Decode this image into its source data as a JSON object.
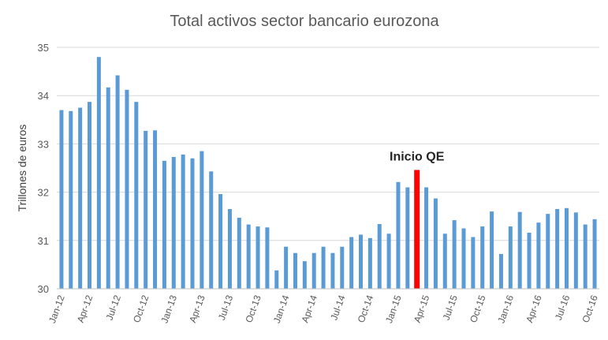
{
  "chart_data": {
    "type": "bar",
    "title": "Total activos sector bancario eurozona",
    "xlabel": "",
    "ylabel": "Trillones de euros",
    "ylim": [
      30,
      35
    ],
    "yticks": [
      30,
      31,
      32,
      33,
      34,
      35
    ],
    "grid": true,
    "colors": {
      "bar": "#5b9bd5",
      "highlight": "#ff0000"
    },
    "tick_labels": [
      {
        "index": 0,
        "label": "Jan-12"
      },
      {
        "index": 3,
        "label": "Apr-12"
      },
      {
        "index": 6,
        "label": "Jul-12"
      },
      {
        "index": 9,
        "label": "Oct-12"
      },
      {
        "index": 12,
        "label": "Jan-13"
      },
      {
        "index": 15,
        "label": "Apr-13"
      },
      {
        "index": 18,
        "label": "Jul-13"
      },
      {
        "index": 21,
        "label": "Oct-13"
      },
      {
        "index": 24,
        "label": "Jan-14"
      },
      {
        "index": 27,
        "label": "Apr-14"
      },
      {
        "index": 30,
        "label": "Jul-14"
      },
      {
        "index": 33,
        "label": "Oct-14"
      },
      {
        "index": 36,
        "label": "Jan-15"
      },
      {
        "index": 39,
        "label": "Apr-15"
      },
      {
        "index": 42,
        "label": "Jul-15"
      },
      {
        "index": 45,
        "label": "Oct-15"
      },
      {
        "index": 48,
        "label": "Jan-16"
      },
      {
        "index": 51,
        "label": "Apr-16"
      },
      {
        "index": 54,
        "label": "Jul-16"
      },
      {
        "index": 57,
        "label": "Oct-16"
      }
    ],
    "values": [
      33.7,
      33.68,
      33.75,
      33.87,
      34.8,
      34.17,
      34.42,
      34.12,
      33.87,
      33.27,
      33.28,
      32.65,
      32.73,
      32.78,
      32.7,
      32.85,
      32.43,
      31.96,
      31.65,
      31.47,
      31.33,
      31.29,
      31.27,
      30.38,
      30.87,
      30.74,
      30.57,
      30.74,
      30.87,
      30.74,
      30.87,
      31.07,
      31.12,
      31.05,
      31.34,
      31.14,
      32.21,
      32.1,
      32.46,
      32.1,
      31.87,
      31.14,
      31.42,
      31.25,
      31.07,
      31.29,
      31.6,
      30.72,
      31.29,
      31.59,
      31.16,
      31.37,
      31.55,
      31.65,
      31.67,
      31.58,
      31.33,
      31.44
    ],
    "highlight_index": 38,
    "annotation": "Inicio QE"
  }
}
